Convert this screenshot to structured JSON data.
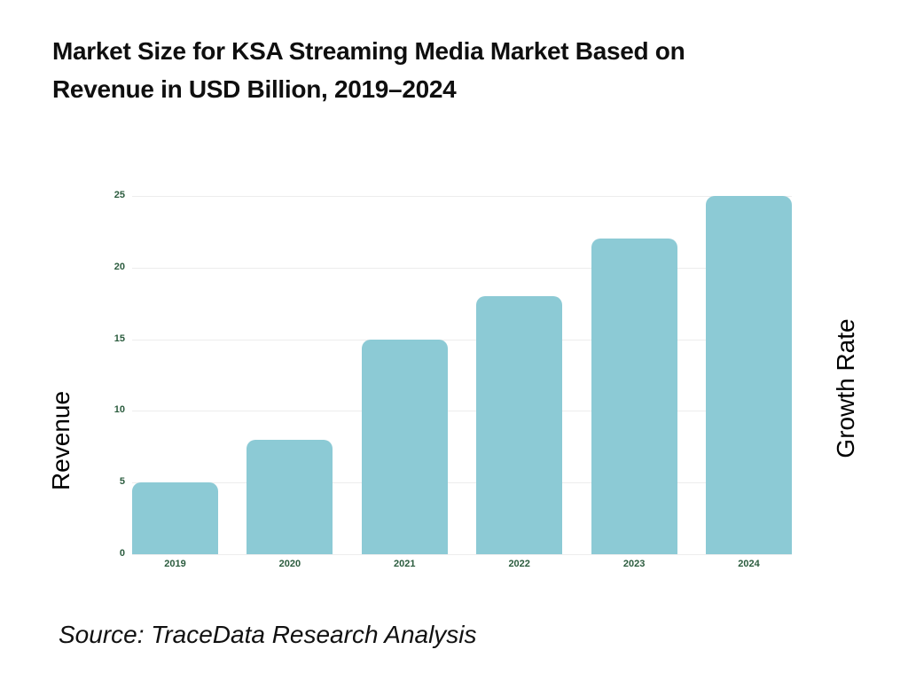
{
  "chart_data": {
    "type": "bar",
    "title": "Market Size for KSA Streaming Media Market Based on Revenue in USD Billion, 2019–2024",
    "title_lines": [
      "Market Size for KSA Streaming Media Market Based on",
      "Revenue in USD Billion, 2019–2024"
    ],
    "categories": [
      "2019",
      "2020",
      "2021",
      "2022",
      "2023",
      "2024"
    ],
    "values": [
      5,
      8,
      15,
      18,
      22,
      25
    ],
    "yticks": [
      0,
      5,
      10,
      15,
      20,
      25
    ],
    "ylim": [
      0,
      25
    ],
    "ylabel_left": "Revenue",
    "ylabel_right": "Growth Rate",
    "xlabel": "",
    "grid": true,
    "legend_position": "none",
    "bar_color": "#8CCAD5",
    "tick_label_color": "#2B5C3E",
    "gridline_color": "#ededed"
  },
  "source": {
    "caption": "Source: TraceData Research Analysis"
  }
}
